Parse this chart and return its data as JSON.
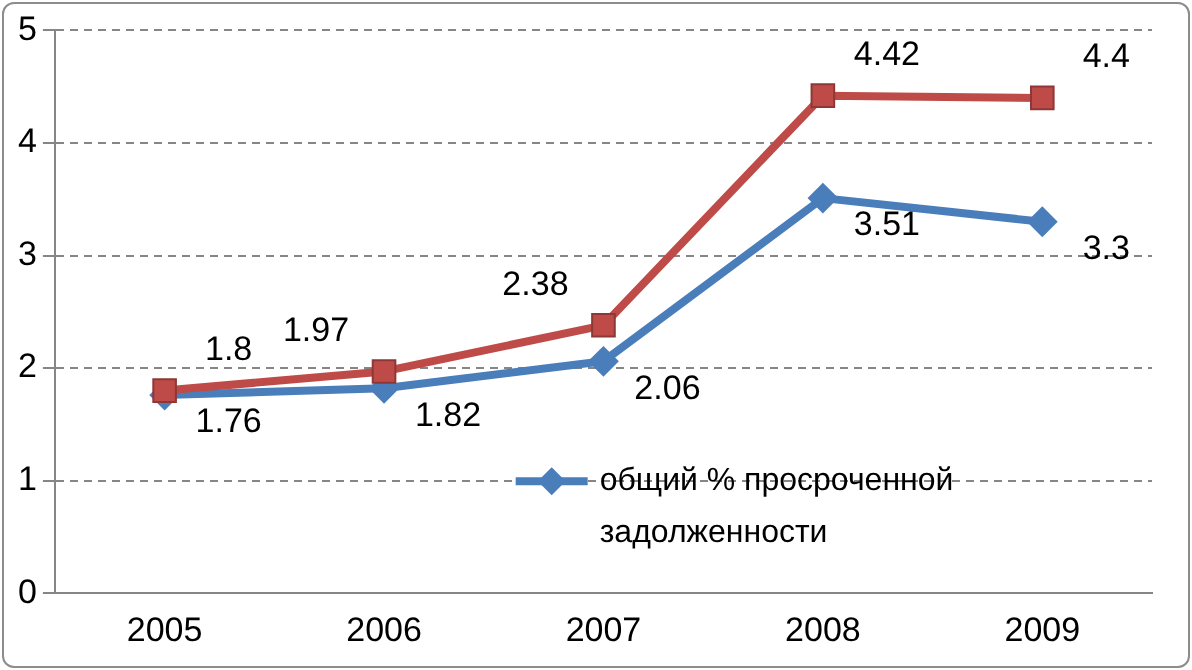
{
  "chart_data": {
    "type": "line",
    "categories": [
      "2005",
      "2006",
      "2007",
      "2008",
      "2009"
    ],
    "series": [
      {
        "name": "общий % просроченной задолженности",
        "color": "#4a7ebb",
        "values": [
          1.76,
          1.82,
          2.06,
          3.51,
          3.3
        ],
        "marker": "diamond"
      },
      {
        "color": "#be4b48",
        "values": [
          1.8,
          1.97,
          2.38,
          4.42,
          4.4
        ],
        "marker": "square"
      }
    ],
    "ylim": [
      0,
      5
    ],
    "yticks": [
      0,
      1,
      2,
      3,
      4,
      5
    ],
    "grid": "y",
    "legend": "bottom right",
    "data_labels": true,
    "line_style": "solid"
  }
}
